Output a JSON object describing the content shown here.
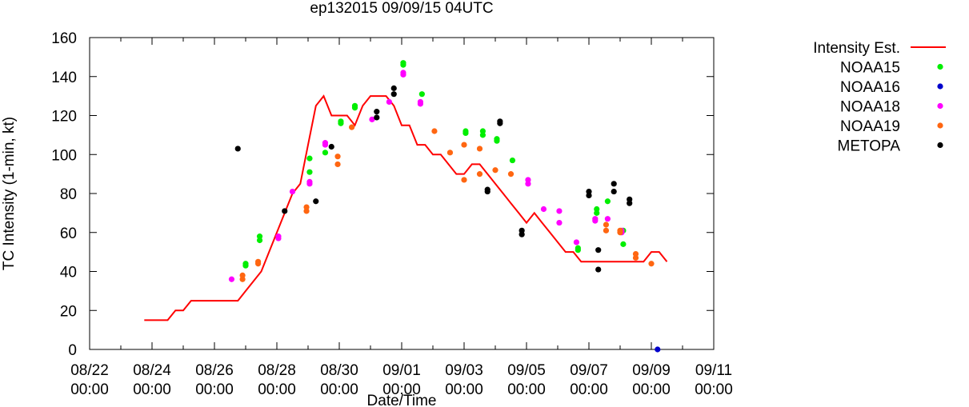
{
  "chart_data": {
    "type": "scatter",
    "title": "ep132015 09/09/15 04UTC",
    "xlabel": "Date/Time",
    "ylabel": "TC Intensity (1-min, kt)",
    "x_units": "days since 08/22 00:00",
    "xlim": [
      0,
      20
    ],
    "ylim": [
      0,
      160
    ],
    "y_ticks": [
      0,
      20,
      40,
      60,
      80,
      100,
      120,
      140,
      160
    ],
    "x_ticks": [
      {
        "x": 0,
        "date": "08/22",
        "time": "00:00"
      },
      {
        "x": 2,
        "date": "08/24",
        "time": "00:00"
      },
      {
        "x": 4,
        "date": "08/26",
        "time": "00:00"
      },
      {
        "x": 6,
        "date": "08/28",
        "time": "00:00"
      },
      {
        "x": 8,
        "date": "08/30",
        "time": "00:00"
      },
      {
        "x": 10,
        "date": "09/01",
        "time": "00:00"
      },
      {
        "x": 12,
        "date": "09/03",
        "time": "00:00"
      },
      {
        "x": 14,
        "date": "09/05",
        "time": "00:00"
      },
      {
        "x": 16,
        "date": "09/07",
        "time": "00:00"
      },
      {
        "x": 18,
        "date": "09/09",
        "time": "00:00"
      },
      {
        "x": 20,
        "date": "09/11",
        "time": "00:00"
      }
    ],
    "legend": {
      "position": "top-right outside"
    },
    "series": [
      {
        "name": "Intensity Est.",
        "kind": "line",
        "color": "#ff0000",
        "points": [
          [
            1.75,
            15
          ],
          [
            2.5,
            15
          ],
          [
            2.75,
            20
          ],
          [
            3.0,
            20
          ],
          [
            3.25,
            25
          ],
          [
            4.0,
            25
          ],
          [
            4.5,
            25
          ],
          [
            4.75,
            25
          ],
          [
            5.0,
            30
          ],
          [
            5.5,
            40
          ],
          [
            6.0,
            60
          ],
          [
            6.5,
            80
          ],
          [
            6.75,
            85
          ],
          [
            7.0,
            105
          ],
          [
            7.25,
            125
          ],
          [
            7.5,
            130
          ],
          [
            7.75,
            120
          ],
          [
            8.0,
            120
          ],
          [
            8.25,
            120
          ],
          [
            8.5,
            115
          ],
          [
            8.75,
            125
          ],
          [
            9.0,
            130
          ],
          [
            9.25,
            130
          ],
          [
            9.5,
            130
          ],
          [
            9.75,
            125
          ],
          [
            10.0,
            115
          ],
          [
            10.25,
            115
          ],
          [
            10.5,
            105
          ],
          [
            10.75,
            105
          ],
          [
            11.0,
            100
          ],
          [
            11.25,
            100
          ],
          [
            11.5,
            95
          ],
          [
            11.75,
            90
          ],
          [
            12.0,
            90
          ],
          [
            12.25,
            95
          ],
          [
            12.5,
            95
          ],
          [
            12.75,
            90
          ],
          [
            13.0,
            85
          ],
          [
            13.25,
            80
          ],
          [
            13.5,
            75
          ],
          [
            13.75,
            70
          ],
          [
            14.0,
            65
          ],
          [
            14.25,
            70
          ],
          [
            14.5,
            65
          ],
          [
            14.75,
            60
          ],
          [
            15.0,
            55
          ],
          [
            15.25,
            50
          ],
          [
            15.5,
            50
          ],
          [
            15.75,
            45
          ],
          [
            16.0,
            45
          ],
          [
            16.25,
            45
          ],
          [
            16.5,
            45
          ],
          [
            16.75,
            45
          ],
          [
            17.0,
            45
          ],
          [
            17.25,
            45
          ],
          [
            17.5,
            45
          ],
          [
            17.75,
            45
          ],
          [
            18.0,
            50
          ],
          [
            18.25,
            50
          ],
          [
            18.5,
            45
          ]
        ]
      },
      {
        "name": "NOAA15",
        "kind": "points",
        "color": "#00ee00",
        "points": [
          [
            5.0,
            43
          ],
          [
            5.0,
            44
          ],
          [
            5.45,
            56
          ],
          [
            5.45,
            58
          ],
          [
            7.05,
            91
          ],
          [
            7.05,
            98
          ],
          [
            7.55,
            101
          ],
          [
            8.05,
            116
          ],
          [
            8.05,
            117
          ],
          [
            8.5,
            124
          ],
          [
            8.5,
            125
          ],
          [
            10.05,
            146
          ],
          [
            10.05,
            147
          ],
          [
            10.65,
            131
          ],
          [
            12.05,
            111
          ],
          [
            12.05,
            112
          ],
          [
            12.6,
            110
          ],
          [
            12.6,
            112
          ],
          [
            13.05,
            107
          ],
          [
            13.05,
            108
          ],
          [
            13.55,
            97
          ],
          [
            16.25,
            72
          ],
          [
            16.25,
            70
          ],
          [
            16.6,
            76
          ],
          [
            17.1,
            61
          ],
          [
            17.1,
            54
          ],
          [
            15.65,
            51
          ],
          [
            15.65,
            52
          ]
        ]
      },
      {
        "name": "NOAA16",
        "kind": "points",
        "color": "#0000cc",
        "points": [
          [
            18.2,
            0
          ]
        ]
      },
      {
        "name": "NOAA18",
        "kind": "points",
        "color": "#ff00ff",
        "points": [
          [
            4.55,
            36
          ],
          [
            6.5,
            81
          ],
          [
            6.05,
            57
          ],
          [
            6.05,
            58
          ],
          [
            7.05,
            85
          ],
          [
            7.05,
            86
          ],
          [
            7.55,
            105
          ],
          [
            7.55,
            106
          ],
          [
            9.05,
            118
          ],
          [
            9.6,
            127
          ],
          [
            10.05,
            141
          ],
          [
            10.05,
            142
          ],
          [
            10.6,
            126
          ],
          [
            10.6,
            127
          ],
          [
            14.05,
            85
          ],
          [
            14.05,
            87
          ],
          [
            14.55,
            72
          ],
          [
            15.05,
            71
          ],
          [
            15.05,
            65
          ],
          [
            15.6,
            55
          ],
          [
            16.2,
            66
          ],
          [
            16.2,
            67
          ],
          [
            16.6,
            67
          ],
          [
            17.05,
            61
          ],
          [
            17.05,
            60
          ]
        ]
      },
      {
        "name": "NOAA19",
        "kind": "points",
        "color": "#ff6611",
        "points": [
          [
            4.9,
            36
          ],
          [
            4.9,
            38
          ],
          [
            5.4,
            44
          ],
          [
            5.4,
            45
          ],
          [
            6.95,
            71
          ],
          [
            6.95,
            73
          ],
          [
            7.95,
            95
          ],
          [
            7.95,
            99
          ],
          [
            8.4,
            114
          ],
          [
            11.05,
            112
          ],
          [
            11.55,
            101
          ],
          [
            12.0,
            105
          ],
          [
            12.5,
            103
          ],
          [
            12.0,
            87
          ],
          [
            12.5,
            90
          ],
          [
            13.0,
            92
          ],
          [
            13.5,
            90
          ],
          [
            16.55,
            61
          ],
          [
            16.55,
            64
          ],
          [
            17.0,
            60
          ],
          [
            17.0,
            61
          ],
          [
            17.5,
            47
          ],
          [
            17.5,
            49
          ],
          [
            18.0,
            44
          ]
        ]
      },
      {
        "name": "METOPA",
        "kind": "points",
        "color": "#000000",
        "points": [
          [
            4.75,
            103
          ],
          [
            6.25,
            71
          ],
          [
            7.25,
            76
          ],
          [
            7.75,
            104
          ],
          [
            9.2,
            119
          ],
          [
            9.2,
            122
          ],
          [
            9.75,
            131
          ],
          [
            9.75,
            134
          ],
          [
            12.75,
            81
          ],
          [
            12.75,
            82
          ],
          [
            13.15,
            116
          ],
          [
            13.15,
            117
          ],
          [
            13.85,
            59
          ],
          [
            13.85,
            61
          ],
          [
            16.0,
            79
          ],
          [
            16.0,
            81
          ],
          [
            16.3,
            51
          ],
          [
            16.3,
            41
          ],
          [
            16.8,
            81
          ],
          [
            16.8,
            85
          ],
          [
            17.3,
            75
          ],
          [
            17.3,
            77
          ]
        ]
      }
    ]
  }
}
